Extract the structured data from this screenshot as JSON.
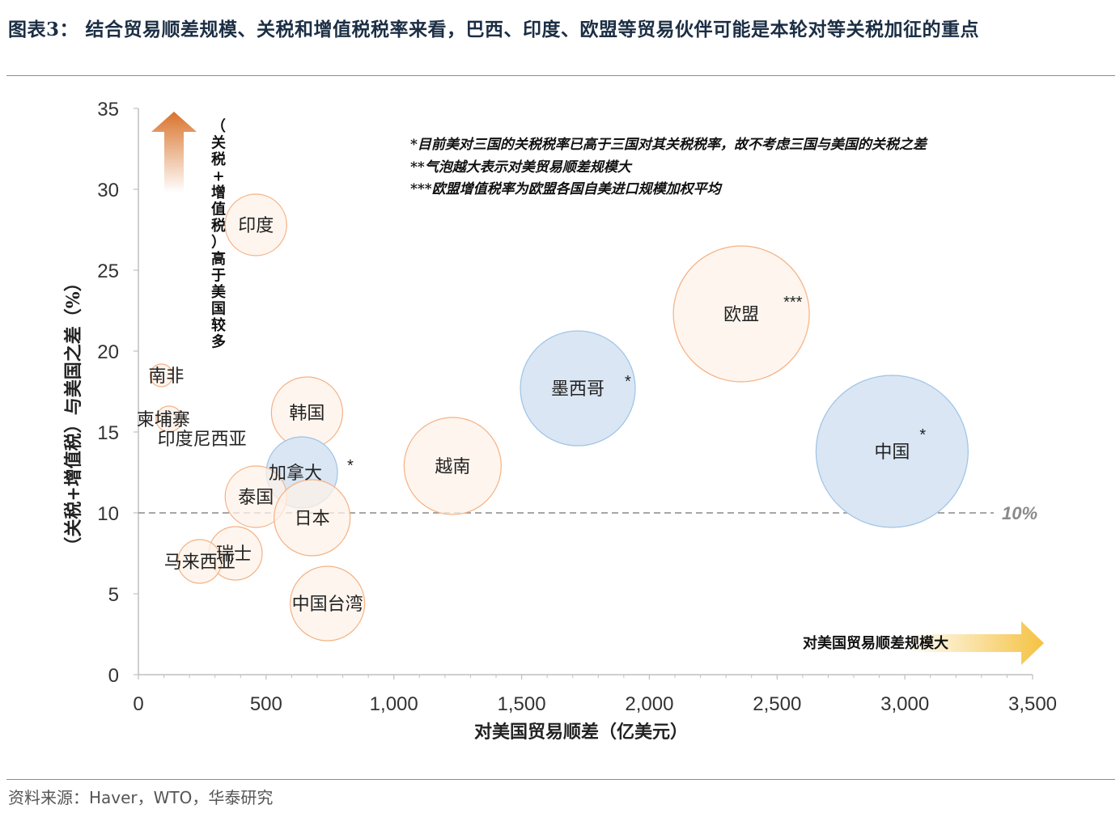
{
  "title": "图表3： 结合贸易顺差规模、关税和增值税税率来看，巴西、印度、欧盟等贸易伙伴可能是本轮对等关税加征的重点",
  "source": "资料来源：Haver，WTO，华泰研究",
  "notes": [
    "*目前美对三国的关税税率已高于三国对其关税税率，故不考虑三国与美国的关税之差",
    "**气泡越大表示对美贸易顺差规模大",
    "***欧盟增值税率为欧盟各国自美进口规模加权平均"
  ],
  "up_arrow_text": "（关税+增值税）高于美国较多",
  "right_arrow_text": "对美国贸易顺差规模大",
  "colors": {
    "orange_fill": "#fdf1e8",
    "orange_stroke": "#f4b183",
    "blue_fill": "#dae6f3",
    "blue_stroke": "#9dc3e6",
    "ref_line": "#8a8a8a",
    "axis": "#bfbfbf",
    "up_arrow": "#d9732c",
    "right_arrow": "#f5c242"
  },
  "chart_data": {
    "type": "bubble",
    "xlabel": "对美国贸易顺差（亿美元）",
    "ylabel": "（关税+增值税）与美国之差（%）",
    "xlim": [
      0,
      3500
    ],
    "ylim": [
      0,
      35
    ],
    "xticks": [
      0,
      500,
      1000,
      1500,
      2000,
      2500,
      3000,
      3500
    ],
    "xtick_labels": [
      "0",
      "500",
      "1,000",
      "1,500",
      "2,000",
      "2,500",
      "3,000",
      "3,500"
    ],
    "yticks": [
      0,
      5,
      10,
      15,
      20,
      25,
      30,
      35
    ],
    "ytick_labels": [
      "0",
      "5",
      "10",
      "15",
      "20",
      "25",
      "30",
      "35"
    ],
    "reference_line": {
      "y": 10,
      "label": "10%"
    },
    "points": [
      {
        "name": "印度",
        "x": 460,
        "y": 27.8,
        "color": "orange",
        "star": ""
      },
      {
        "name": "南非",
        "x": 90,
        "y": 18.5,
        "color": "orange",
        "star": ""
      },
      {
        "name": "柬埔寨",
        "x": 120,
        "y": 15.8,
        "color": "orange",
        "star": ""
      },
      {
        "name": "印度尼西亚",
        "x": 170,
        "y": 14.6,
        "color": "orange",
        "star": ""
      },
      {
        "name": "韩国",
        "x": 660,
        "y": 16.2,
        "color": "orange",
        "star": ""
      },
      {
        "name": "加拿大",
        "x": 640,
        "y": 12.5,
        "color": "blue",
        "star": "*"
      },
      {
        "name": "泰国",
        "x": 460,
        "y": 11.0,
        "color": "orange",
        "star": ""
      },
      {
        "name": "日本",
        "x": 680,
        "y": 9.7,
        "color": "orange",
        "star": ""
      },
      {
        "name": "越南",
        "x": 1230,
        "y": 12.9,
        "color": "orange",
        "star": ""
      },
      {
        "name": "瑞士",
        "x": 380,
        "y": 7.5,
        "color": "orange",
        "star": ""
      },
      {
        "name": "马来西亚",
        "x": 240,
        "y": 7.0,
        "color": "orange",
        "star": ""
      },
      {
        "name": "中国台湾",
        "x": 740,
        "y": 4.4,
        "color": "orange",
        "star": ""
      },
      {
        "name": "墨西哥",
        "x": 1720,
        "y": 17.7,
        "color": "blue",
        "star": "*"
      },
      {
        "name": "欧盟",
        "x": 2360,
        "y": 22.3,
        "color": "orange",
        "star": "***"
      },
      {
        "name": "中国",
        "x": 2950,
        "y": 13.8,
        "color": "blue",
        "star": "*"
      }
    ]
  }
}
